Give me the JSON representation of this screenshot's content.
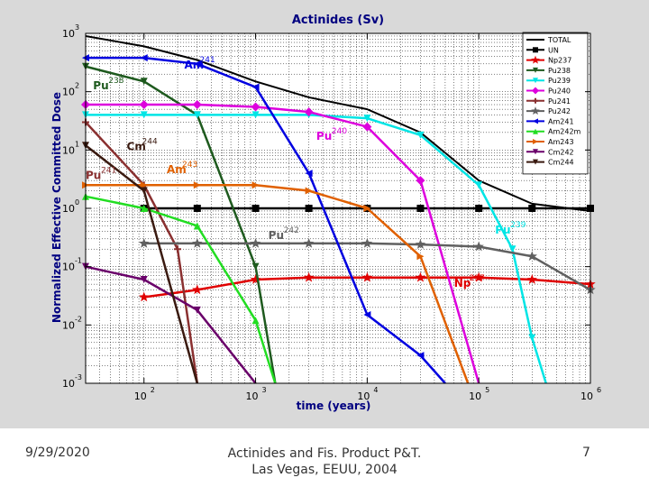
{
  "footer": {
    "date": "9/29/2020",
    "center_line1": "Actinides and Fis. Product P&T.",
    "center_line2": "Las Vegas, EEUU, 2004",
    "page_number": "7"
  },
  "chart_data": {
    "type": "line",
    "title": "Actinides (Sv)",
    "xlabel": "time (years)",
    "ylabel": "Normalized Effective Committed Dose",
    "x_scale": "log",
    "y_scale": "log",
    "xlim": [
      30,
      1000000
    ],
    "ylim": [
      0.001,
      1000
    ],
    "grid": true,
    "legend_position": "top-right",
    "x_ticks": [
      {
        "value": 100,
        "base": "10",
        "exp": "2"
      },
      {
        "value": 1000,
        "base": "10",
        "exp": "3"
      },
      {
        "value": 10000,
        "base": "10",
        "exp": "4"
      },
      {
        "value": 100000,
        "base": "10",
        "exp": "5"
      },
      {
        "value": 1000000,
        "base": "10",
        "exp": "6"
      }
    ],
    "y_ticks": [
      {
        "value": 1000,
        "base": "10",
        "exp": "3"
      },
      {
        "value": 100,
        "base": "10",
        "exp": "2"
      },
      {
        "value": 10,
        "base": "10",
        "exp": "1"
      },
      {
        "value": 1,
        "base": "10",
        "exp": "0"
      },
      {
        "value": 0.1,
        "base": "10",
        "exp": "-1"
      },
      {
        "value": 0.01,
        "base": "10",
        "exp": "-2"
      },
      {
        "value": 0.001,
        "base": "10",
        "exp": "-3"
      }
    ],
    "series": [
      {
        "name": "TOTAL",
        "color": "#000000",
        "marker": "none",
        "points": [
          [
            30,
            900
          ],
          [
            100,
            600
          ],
          [
            300,
            350
          ],
          [
            1000,
            150
          ],
          [
            3000,
            80
          ],
          [
            10000,
            50
          ],
          [
            30000,
            20
          ],
          [
            100000,
            3
          ],
          [
            300000,
            1.2
          ],
          [
            1000000,
            0.9
          ]
        ]
      },
      {
        "name": "UN",
        "color": "#000000",
        "marker": "square",
        "points": [
          [
            100,
            1
          ],
          [
            300,
            1
          ],
          [
            1000,
            1
          ],
          [
            3000,
            1
          ],
          [
            10000,
            1
          ],
          [
            30000,
            1
          ],
          [
            100000,
            1
          ],
          [
            300000,
            1
          ],
          [
            1000000,
            1
          ]
        ]
      },
      {
        "name": "Np237",
        "color": "#e00000",
        "marker": "star",
        "points": [
          [
            100,
            0.03
          ],
          [
            300,
            0.04
          ],
          [
            1000,
            0.06
          ],
          [
            3000,
            0.065
          ],
          [
            10000,
            0.065
          ],
          [
            30000,
            0.065
          ],
          [
            100000,
            0.065
          ],
          [
            300000,
            0.06
          ],
          [
            1000000,
            0.05
          ]
        ]
      },
      {
        "name": "Pu238",
        "color": "#1e5a1e",
        "marker": "triangle-down",
        "points": [
          [
            30,
            270
          ],
          [
            100,
            150
          ],
          [
            300,
            40
          ],
          [
            1000,
            0.1
          ],
          [
            1500,
            0.001
          ]
        ]
      },
      {
        "name": "Pu239",
        "color": "#00e5e5",
        "marker": "triangle-down",
        "points": [
          [
            30,
            40
          ],
          [
            100,
            40
          ],
          [
            300,
            40
          ],
          [
            1000,
            40
          ],
          [
            3000,
            40
          ],
          [
            10000,
            35
          ],
          [
            30000,
            18
          ],
          [
            100000,
            2.5
          ],
          [
            200000,
            0.2
          ],
          [
            300000,
            0.006
          ],
          [
            400000,
            0.001
          ]
        ]
      },
      {
        "name": "Pu240",
        "color": "#dd00dd",
        "marker": "diamond",
        "points": [
          [
            30,
            60
          ],
          [
            100,
            60
          ],
          [
            300,
            60
          ],
          [
            1000,
            55
          ],
          [
            3000,
            45
          ],
          [
            10000,
            25
          ],
          [
            30000,
            3
          ],
          [
            100000,
            0.001
          ]
        ]
      },
      {
        "name": "Pu241",
        "color": "#8a3030",
        "marker": "plus",
        "points": [
          [
            30,
            30
          ],
          [
            100,
            2.5
          ],
          [
            200,
            0.2
          ],
          [
            300,
            0.001
          ]
        ]
      },
      {
        "name": "Pu242",
        "color": "#606060",
        "marker": "star",
        "points": [
          [
            100,
            0.25
          ],
          [
            300,
            0.25
          ],
          [
            1000,
            0.25
          ],
          [
            3000,
            0.25
          ],
          [
            10000,
            0.25
          ],
          [
            30000,
            0.24
          ],
          [
            100000,
            0.22
          ],
          [
            300000,
            0.15
          ],
          [
            1000000,
            0.04
          ]
        ]
      },
      {
        "name": "Am241",
        "color": "#0000e0",
        "marker": "triangle-left",
        "points": [
          [
            30,
            380
          ],
          [
            100,
            380
          ],
          [
            300,
            300
          ],
          [
            1000,
            120
          ],
          [
            3000,
            4
          ],
          [
            10000,
            0.015
          ],
          [
            30000,
            0.003
          ],
          [
            50000,
            0.001
          ]
        ]
      },
      {
        "name": "Am242m",
        "color": "#22dd22",
        "marker": "triangle-up",
        "points": [
          [
            30,
            1.6
          ],
          [
            100,
            1
          ],
          [
            300,
            0.5
          ],
          [
            1000,
            0.012
          ],
          [
            1500,
            0.001
          ]
        ]
      },
      {
        "name": "Am243",
        "color": "#e06000",
        "marker": "triangle-right",
        "points": [
          [
            30,
            2.5
          ],
          [
            100,
            2.5
          ],
          [
            300,
            2.5
          ],
          [
            1000,
            2.5
          ],
          [
            3000,
            2
          ],
          [
            10000,
            1
          ],
          [
            30000,
            0.15
          ],
          [
            80000,
            0.001
          ]
        ]
      },
      {
        "name": "Cm242",
        "color": "#6a006a",
        "marker": "triangle-down",
        "points": [
          [
            30,
            0.1
          ],
          [
            100,
            0.06
          ],
          [
            300,
            0.018
          ],
          [
            1000,
            0.001
          ]
        ]
      },
      {
        "name": "Cm244",
        "color": "#3a1a10",
        "marker": "triangle-down",
        "points": [
          [
            30,
            12
          ],
          [
            100,
            2
          ],
          [
            300,
            0.001
          ]
        ]
      }
    ],
    "annotations": [
      {
        "text": "Am",
        "sup": "241",
        "color": "#0000e0",
        "x": 230,
        "y": 250
      },
      {
        "text": "Pu",
        "sup": "238",
        "color": "#1e5a1e",
        "x": 35,
        "y": 110
      },
      {
        "text": "Pu",
        "sup": "240",
        "color": "#dd00dd",
        "x": 3500,
        "y": 15
      },
      {
        "text": "Cm",
        "sup": "244",
        "color": "#3a1a10",
        "x": 70,
        "y": 10
      },
      {
        "text": "Am",
        "sup": "243",
        "color": "#e06000",
        "x": 160,
        "y": 4
      },
      {
        "text": "Pu",
        "sup": "241",
        "color": "#8a3030",
        "x": 30,
        "y": 3.2
      },
      {
        "text": "Pu",
        "sup": "242",
        "color": "#606060",
        "x": 1300,
        "y": 0.3
      },
      {
        "text": "Pu",
        "sup": "239",
        "color": "#00e5e5",
        "x": 140000,
        "y": 0.37
      },
      {
        "text": "Np",
        "sup": "237",
        "color": "#e00000",
        "x": 60000,
        "y": 0.045
      }
    ]
  }
}
